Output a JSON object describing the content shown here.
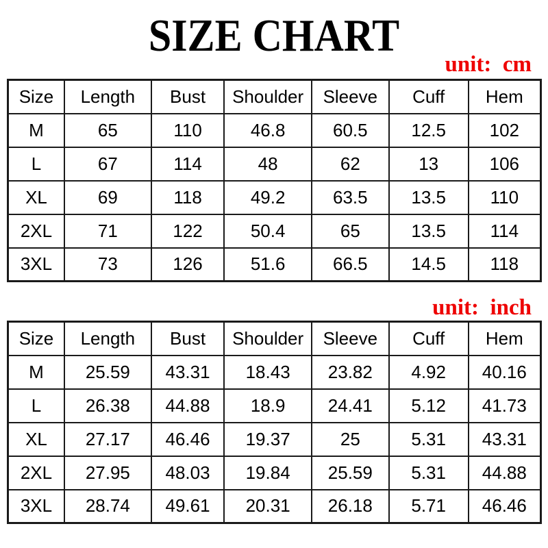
{
  "title": "SIZE CHART",
  "colors": {
    "accent_red": "#ee0000",
    "text": "#000000",
    "border": "#1a1a1a",
    "background": "#ffffff"
  },
  "tables": [
    {
      "name": "cm",
      "unit_label": "unit:  cm",
      "headers": [
        "Size",
        "Length",
        "Bust",
        "Shoulder",
        "Sleeve",
        "Cuff",
        "Hem"
      ],
      "rows": [
        [
          "M",
          "65",
          "110",
          "46.8",
          "60.5",
          "12.5",
          "102"
        ],
        [
          "L",
          "67",
          "114",
          "48",
          "62",
          "13",
          "106"
        ],
        [
          "XL",
          "69",
          "118",
          "49.2",
          "63.5",
          "13.5",
          "110"
        ],
        [
          "2XL",
          "71",
          "122",
          "50.4",
          "65",
          "13.5",
          "114"
        ],
        [
          "3XL",
          "73",
          "126",
          "51.6",
          "66.5",
          "14.5",
          "118"
        ]
      ]
    },
    {
      "name": "inch",
      "unit_label": "unit:  inch",
      "headers": [
        "Size",
        "Length",
        "Bust",
        "Shoulder",
        "Sleeve",
        "Cuff",
        "Hem"
      ],
      "rows": [
        [
          "M",
          "25.59",
          "43.31",
          "18.43",
          "23.82",
          "4.92",
          "40.16"
        ],
        [
          "L",
          "26.38",
          "44.88",
          "18.9",
          "24.41",
          "5.12",
          "41.73"
        ],
        [
          "XL",
          "27.17",
          "46.46",
          "19.37",
          "25",
          "5.31",
          "43.31"
        ],
        [
          "2XL",
          "27.95",
          "48.03",
          "19.84",
          "25.59",
          "5.31",
          "44.88"
        ],
        [
          "3XL",
          "28.74",
          "49.61",
          "20.31",
          "26.18",
          "5.71",
          "46.46"
        ]
      ]
    }
  ],
  "chart_data": [
    {
      "type": "table",
      "title": "SIZE CHART",
      "unit": "cm",
      "columns": [
        "Size",
        "Length",
        "Bust",
        "Shoulder",
        "Sleeve",
        "Cuff",
        "Hem"
      ],
      "rows": [
        [
          "M",
          65,
          110,
          46.8,
          60.5,
          12.5,
          102
        ],
        [
          "L",
          67,
          114,
          48,
          62,
          13,
          106
        ],
        [
          "XL",
          69,
          118,
          49.2,
          63.5,
          13.5,
          110
        ],
        [
          "2XL",
          71,
          122,
          50.4,
          65,
          13.5,
          114
        ],
        [
          "3XL",
          73,
          126,
          51.6,
          66.5,
          14.5,
          118
        ]
      ]
    },
    {
      "type": "table",
      "title": "SIZE CHART",
      "unit": "inch",
      "columns": [
        "Size",
        "Length",
        "Bust",
        "Shoulder",
        "Sleeve",
        "Cuff",
        "Hem"
      ],
      "rows": [
        [
          "M",
          25.59,
          43.31,
          18.43,
          23.82,
          4.92,
          40.16
        ],
        [
          "L",
          26.38,
          44.88,
          18.9,
          24.41,
          5.12,
          41.73
        ],
        [
          "XL",
          27.17,
          46.46,
          19.37,
          25,
          5.31,
          43.31
        ],
        [
          "2XL",
          27.95,
          48.03,
          19.84,
          25.59,
          5.31,
          44.88
        ],
        [
          "3XL",
          28.74,
          49.61,
          20.31,
          26.18,
          5.71,
          46.46
        ]
      ]
    }
  ]
}
